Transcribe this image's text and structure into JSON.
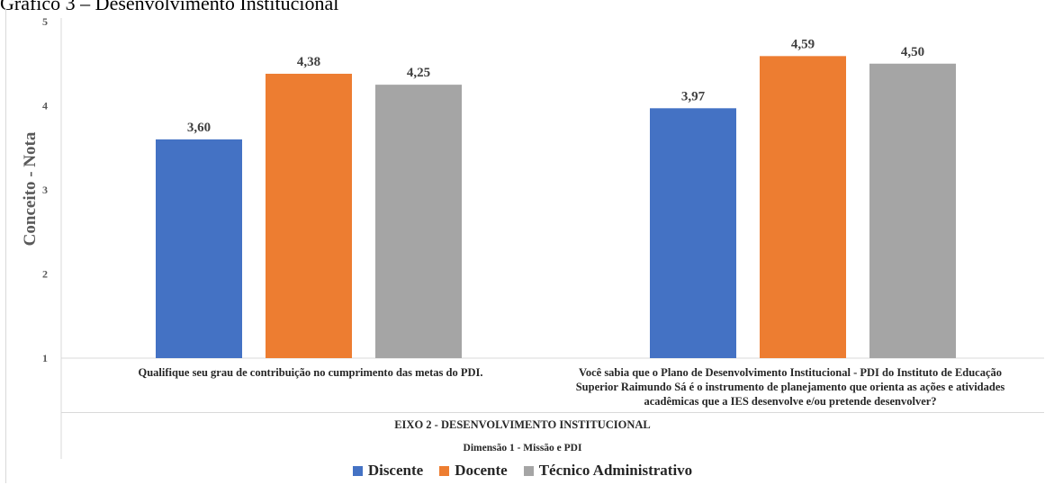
{
  "caption": "Gráfico 3 – Desenvolvimento Institucional",
  "chart_data": {
    "type": "bar",
    "ylabel": "Conceito - Nota",
    "ylim": [
      1,
      5
    ],
    "yticks": [
      1,
      2,
      3,
      4,
      5
    ],
    "categories": [
      "Qualifique seu grau de contribuição no cumprimento das metas do PDI.",
      "Você sabia que o Plano de Desenvolvimento Institucional - PDI do Instituto de Educação Superior Raimundo Sá é o instrumento de planejamento que orienta as ações e atividades acadêmicas que a IES desenvolve e/ou pretende desenvolver?"
    ],
    "series": [
      {
        "name": "Discente",
        "color": "#4472c4",
        "values": [
          3.6,
          3.97
        ],
        "labels": [
          "3,60",
          "3,97"
        ]
      },
      {
        "name": "Docente",
        "color": "#ed7d31",
        "values": [
          4.38,
          4.59
        ],
        "labels": [
          "4,38",
          "4,59"
        ]
      },
      {
        "name": "Técnico Administrativo",
        "color": "#a5a5a5",
        "values": [
          4.25,
          4.5
        ],
        "labels": [
          "4,25",
          "4,50"
        ]
      }
    ],
    "group_label": "EIXO 2 - DESENVOLVIMENTO INSTITUCIONAL",
    "sub_label": "Dimensão 1 - Missão e PDI",
    "grid": false,
    "legend_position": "bottom"
  }
}
